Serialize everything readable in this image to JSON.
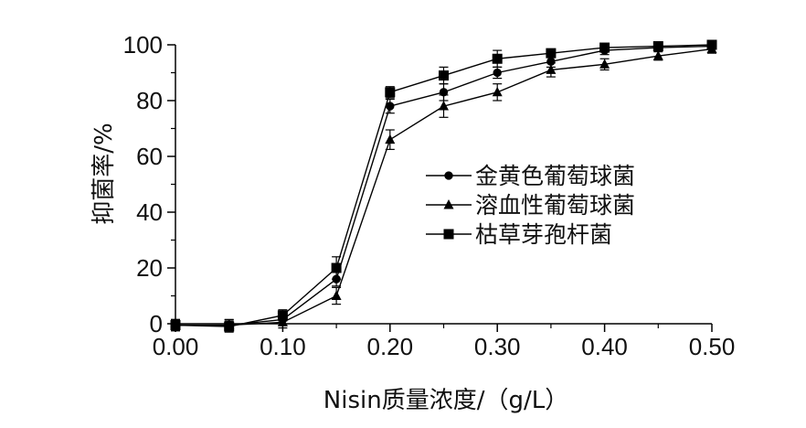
{
  "chart_data": {
    "type": "line",
    "title": "",
    "xlabel": "Nisin质量浓度/（g/L）",
    "ylabel": "抑菌率/%",
    "xlim": [
      0,
      0.5
    ],
    "ylim": [
      0,
      100
    ],
    "xticks": [
      "0.00",
      "0.10",
      "0.20",
      "0.30",
      "0.40",
      "0.50"
    ],
    "yticks": [
      "0",
      "20",
      "40",
      "60",
      "80",
      "100"
    ],
    "grid": false,
    "legend_position": "center-right",
    "x": [
      0.0,
      0.05,
      0.1,
      0.15,
      0.2,
      0.25,
      0.3,
      0.35,
      0.4,
      0.45,
      0.5
    ],
    "series": [
      {
        "name": "金黄色葡萄球菌",
        "marker": "circle",
        "values": [
          -0.5,
          -0.5,
          1.5,
          16,
          78,
          83,
          90,
          94,
          98,
          99,
          99.5
        ],
        "errors": [
          2,
          2,
          2,
          2.5,
          2.5,
          3,
          2,
          2,
          1.5,
          1,
          1
        ]
      },
      {
        "name": "溶血性葡萄球菌",
        "marker": "triangle",
        "values": [
          -0.5,
          -0.5,
          0.5,
          10,
          66,
          78,
          83,
          91,
          93,
          96,
          98.5
        ],
        "errors": [
          2,
          2,
          2,
          3,
          3.5,
          4,
          3,
          2.5,
          2,
          1.5,
          1.5
        ]
      },
      {
        "name": "枯草芽孢杆菌",
        "marker": "square",
        "values": [
          -0.5,
          -1,
          3,
          20,
          83,
          89,
          95,
          97,
          99,
          99.5,
          100
        ],
        "errors": [
          2,
          2,
          2,
          4,
          2,
          3,
          3,
          1.5,
          1.5,
          1,
          1
        ]
      }
    ],
    "colors": {
      "line": "#000000",
      "marker": "#000000"
    }
  }
}
